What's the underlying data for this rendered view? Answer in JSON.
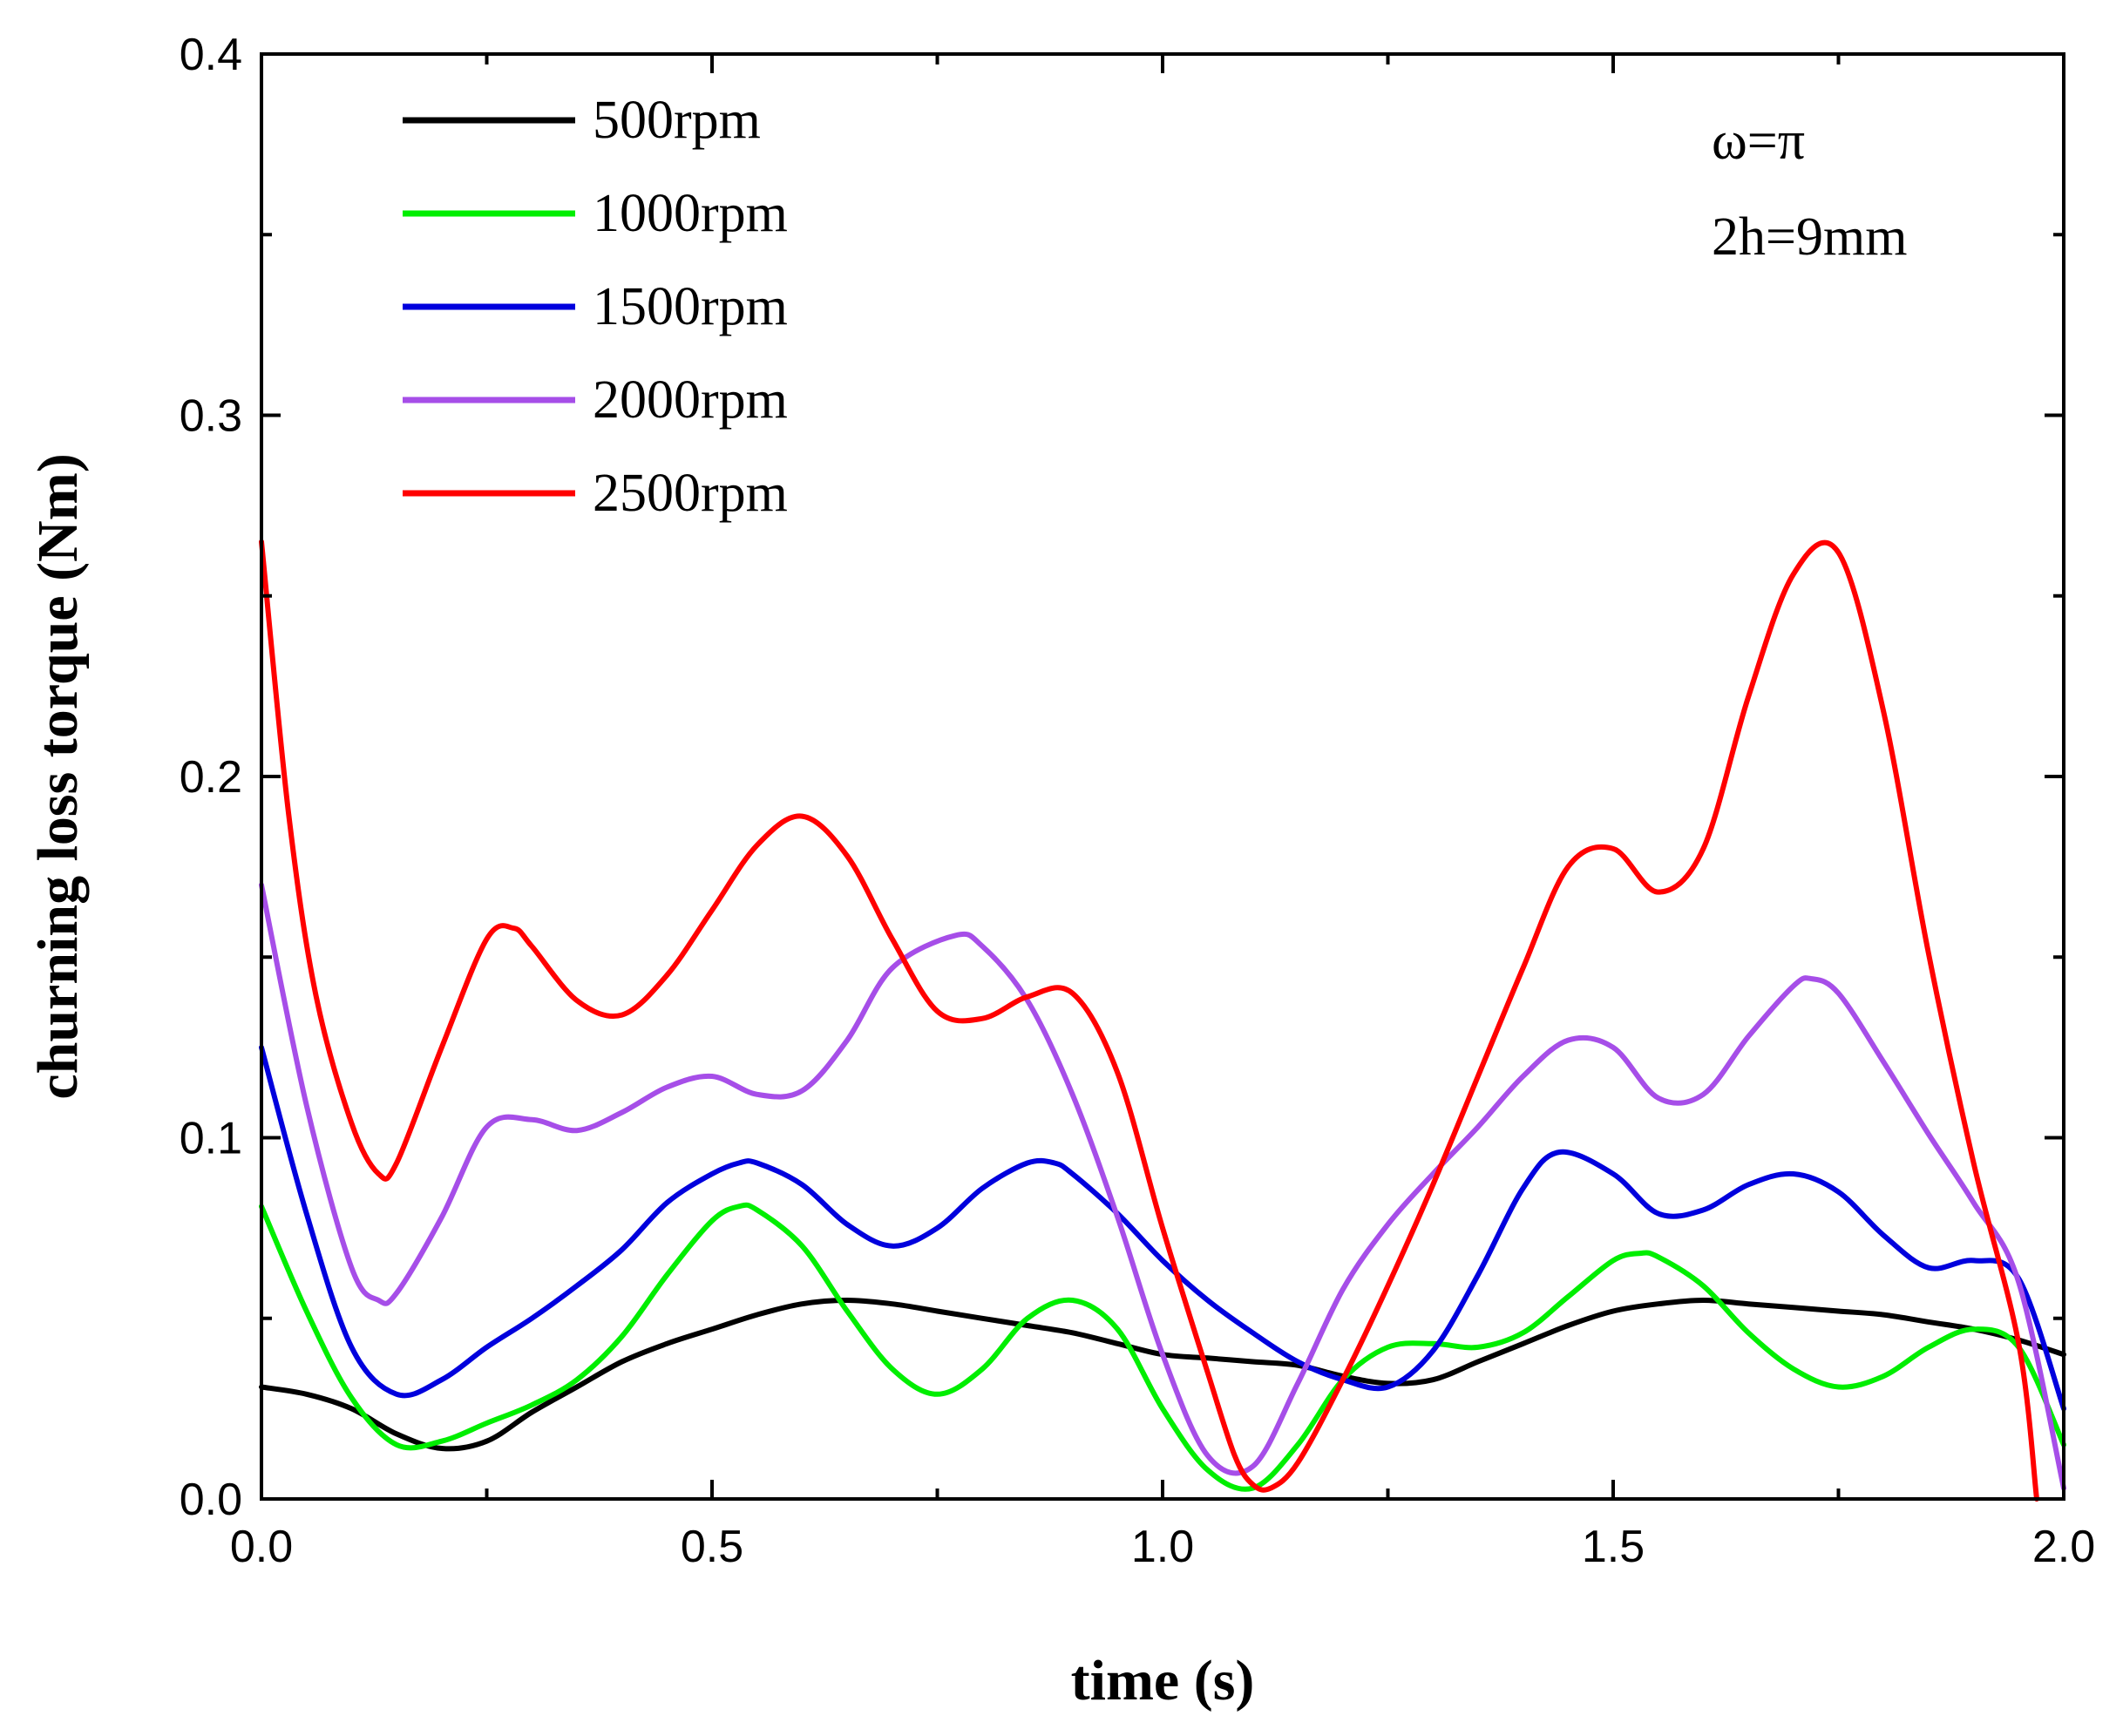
{
  "chart_data": {
    "type": "line",
    "xlabel": "time (s)",
    "ylabel": "churning loss torque (Nm)",
    "xlim": [
      0,
      2.0
    ],
    "ylim": [
      0,
      0.4
    ],
    "xticks": [
      "0.0",
      "0.5",
      "1.0",
      "1.5",
      "2.0"
    ],
    "yticks": [
      "0.0",
      "0.1",
      "0.2",
      "0.3",
      "0.4"
    ],
    "grid": false,
    "legend_position": "top-left",
    "annotations": [
      "ω=π",
      "2h=9mm"
    ],
    "series": [
      {
        "name": "500rpm",
        "color": "#000000",
        "x": [
          0.0,
          0.05,
          0.1,
          0.15,
          0.2,
          0.25,
          0.3,
          0.35,
          0.4,
          0.45,
          0.5,
          0.55,
          0.6,
          0.65,
          0.7,
          0.75,
          0.8,
          0.85,
          0.9,
          0.95,
          1.0,
          1.05,
          1.1,
          1.15,
          1.2,
          1.25,
          1.3,
          1.35,
          1.4,
          1.45,
          1.5,
          1.55,
          1.6,
          1.65,
          1.7,
          1.75,
          1.8,
          1.85,
          1.9,
          1.95,
          2.0
        ],
        "values": [
          0.031,
          0.029,
          0.025,
          0.018,
          0.014,
          0.016,
          0.024,
          0.031,
          0.038,
          0.043,
          0.047,
          0.051,
          0.054,
          0.055,
          0.054,
          0.052,
          0.05,
          0.048,
          0.046,
          0.043,
          0.04,
          0.039,
          0.038,
          0.037,
          0.034,
          0.032,
          0.033,
          0.038,
          0.043,
          0.048,
          0.052,
          0.054,
          0.055,
          0.054,
          0.053,
          0.052,
          0.051,
          0.049,
          0.047,
          0.044,
          0.04
        ]
      },
      {
        "name": "1000rpm",
        "color": "#00ee00",
        "x": [
          0.0,
          0.05,
          0.1,
          0.15,
          0.2,
          0.25,
          0.3,
          0.35,
          0.4,
          0.45,
          0.5,
          0.53,
          0.55,
          0.6,
          0.65,
          0.7,
          0.75,
          0.8,
          0.85,
          0.9,
          0.95,
          1.0,
          1.05,
          1.1,
          1.15,
          1.2,
          1.25,
          1.3,
          1.35,
          1.4,
          1.45,
          1.5,
          1.53,
          1.55,
          1.6,
          1.65,
          1.7,
          1.75,
          1.8,
          1.85,
          1.9,
          1.95,
          2.0
        ],
        "values": [
          0.081,
          0.052,
          0.028,
          0.015,
          0.016,
          0.021,
          0.026,
          0.033,
          0.045,
          0.062,
          0.077,
          0.081,
          0.08,
          0.07,
          0.052,
          0.036,
          0.029,
          0.036,
          0.05,
          0.055,
          0.047,
          0.025,
          0.008,
          0.003,
          0.015,
          0.033,
          0.042,
          0.043,
          0.042,
          0.046,
          0.056,
          0.066,
          0.068,
          0.067,
          0.059,
          0.046,
          0.036,
          0.031,
          0.034,
          0.042,
          0.047,
          0.042,
          0.015
        ]
      },
      {
        "name": "1500rpm",
        "color": "#0000dd",
        "x": [
          0.0,
          0.05,
          0.1,
          0.15,
          0.2,
          0.25,
          0.3,
          0.35,
          0.4,
          0.45,
          0.5,
          0.53,
          0.55,
          0.6,
          0.65,
          0.7,
          0.75,
          0.8,
          0.85,
          0.88,
          0.9,
          0.95,
          1.0,
          1.05,
          1.1,
          1.15,
          1.2,
          1.25,
          1.3,
          1.35,
          1.4,
          1.44,
          1.5,
          1.55,
          1.6,
          1.65,
          1.7,
          1.75,
          1.8,
          1.85,
          1.9,
          1.95,
          2.0
        ],
        "values": [
          0.125,
          0.079,
          0.042,
          0.029,
          0.033,
          0.042,
          0.05,
          0.059,
          0.069,
          0.082,
          0.09,
          0.093,
          0.093,
          0.087,
          0.076,
          0.07,
          0.075,
          0.086,
          0.093,
          0.093,
          0.09,
          0.079,
          0.066,
          0.055,
          0.046,
          0.038,
          0.033,
          0.031,
          0.041,
          0.062,
          0.086,
          0.096,
          0.09,
          0.079,
          0.08,
          0.087,
          0.09,
          0.085,
          0.073,
          0.064,
          0.066,
          0.061,
          0.025
        ]
      },
      {
        "name": "2000rpm",
        "color": "#a64ee8",
        "x": [
          0.0,
          0.05,
          0.1,
          0.13,
          0.15,
          0.2,
          0.25,
          0.3,
          0.35,
          0.4,
          0.45,
          0.5,
          0.55,
          0.6,
          0.65,
          0.7,
          0.77,
          0.8,
          0.85,
          0.9,
          0.95,
          1.0,
          1.05,
          1.1,
          1.15,
          1.2,
          1.25,
          1.3,
          1.35,
          1.4,
          1.45,
          1.5,
          1.55,
          1.6,
          1.65,
          1.7,
          1.72,
          1.75,
          1.8,
          1.85,
          1.9,
          1.95,
          2.0
        ],
        "values": [
          0.17,
          0.109,
          0.064,
          0.055,
          0.057,
          0.078,
          0.103,
          0.105,
          0.102,
          0.107,
          0.114,
          0.117,
          0.112,
          0.113,
          0.127,
          0.147,
          0.156,
          0.153,
          0.138,
          0.112,
          0.078,
          0.04,
          0.012,
          0.009,
          0.032,
          0.058,
          0.076,
          0.09,
          0.103,
          0.117,
          0.127,
          0.125,
          0.111,
          0.112,
          0.128,
          0.142,
          0.144,
          0.14,
          0.121,
          0.101,
          0.082,
          0.06,
          0.003
        ]
      },
      {
        "name": "2500rpm",
        "color": "#ff0000",
        "x": [
          0.0,
          0.03,
          0.06,
          0.1,
          0.13,
          0.15,
          0.2,
          0.25,
          0.28,
          0.3,
          0.35,
          0.4,
          0.45,
          0.5,
          0.55,
          0.6,
          0.65,
          0.7,
          0.75,
          0.8,
          0.85,
          0.9,
          0.95,
          1.0,
          1.05,
          1.08,
          1.1,
          1.12,
          1.15,
          1.2,
          1.25,
          1.3,
          1.35,
          1.4,
          1.45,
          1.5,
          1.55,
          1.6,
          1.65,
          1.7,
          1.75,
          1.8,
          1.85,
          1.9,
          1.95,
          1.97
        ],
        "values": [
          0.265,
          0.19,
          0.14,
          0.104,
          0.09,
          0.093,
          0.125,
          0.155,
          0.158,
          0.153,
          0.138,
          0.134,
          0.145,
          0.163,
          0.181,
          0.189,
          0.178,
          0.155,
          0.135,
          0.133,
          0.139,
          0.14,
          0.118,
          0.075,
          0.035,
          0.012,
          0.004,
          0.003,
          0.01,
          0.033,
          0.059,
          0.087,
          0.117,
          0.147,
          0.175,
          0.18,
          0.168,
          0.18,
          0.222,
          0.256,
          0.262,
          0.218,
          0.151,
          0.093,
          0.043,
          0.0
        ]
      }
    ]
  }
}
